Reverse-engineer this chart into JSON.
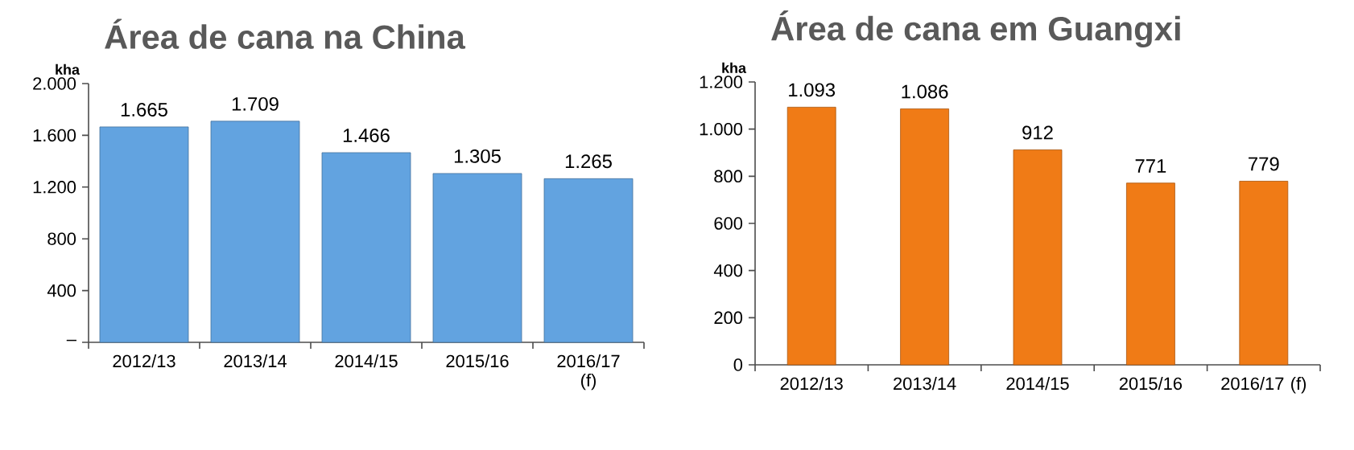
{
  "chart_data": [
    {
      "type": "bar",
      "title": "Área de cana na China",
      "ylabel": "kha",
      "categories": [
        "2012/13",
        "2013/14",
        "2014/15",
        "2015/16",
        "2016/17 (f)"
      ],
      "values": [
        1665,
        1709,
        1466,
        1305,
        1265
      ],
      "value_labels": [
        "1.665",
        "1.709",
        "1.466",
        "1.305",
        "1.265"
      ],
      "color": "#62a3e0",
      "ylim": [
        0,
        2000
      ],
      "yticks": [
        {
          "value": 0,
          "label": "–"
        },
        400,
        800,
        {
          "value": 1200,
          "label": "1.200"
        },
        {
          "value": 1600,
          "label": "1.600"
        },
        {
          "value": 2000,
          "label": "2.000"
        }
      ]
    },
    {
      "type": "bar",
      "title": "Área de cana em Guangxi",
      "ylabel": "kha",
      "categories": [
        "2012/13",
        "2013/14",
        "2014/15",
        "2015/16",
        "2016/17 (f)"
      ],
      "values": [
        1093,
        1086,
        912,
        771,
        779
      ],
      "value_labels": [
        "1.093",
        "1.086",
        "912",
        "771",
        "779"
      ],
      "color": "#f07b16",
      "ylim": [
        0,
        1200
      ],
      "yticks": [
        0,
        200,
        400,
        600,
        800,
        {
          "value": 1000,
          "label": "1.000"
        },
        {
          "value": 1200,
          "label": "1.200"
        }
      ]
    }
  ]
}
